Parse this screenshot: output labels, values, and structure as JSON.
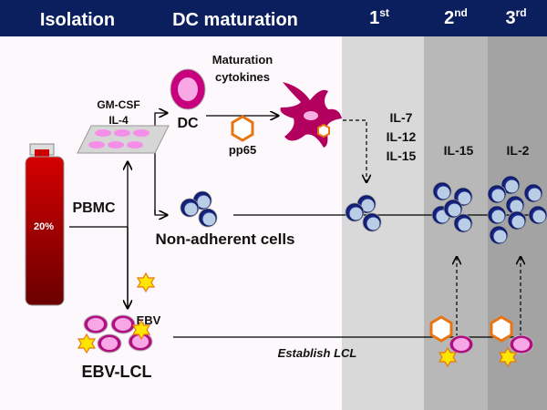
{
  "header": {
    "isolation": "Isolation",
    "dc_maturation": "DC maturation",
    "stim1": {
      "num": "1",
      "sup": "st"
    },
    "stim2": {
      "num": "2",
      "sup": "nd"
    },
    "stim3": {
      "num": "3",
      "sup": "rd"
    }
  },
  "labels": {
    "gm_csf": "GM-CSF",
    "il4": "IL-4",
    "dc": "DC",
    "maturation": "Maturation",
    "cytokines": "cytokines",
    "pp65": "pp65",
    "pbmc": "PBMC",
    "bottle_pct": "20%",
    "non_adherent": "Non-adherent cells",
    "ebv": "EBV",
    "ebv_lcl": "EBV-LCL",
    "establish_lcl": "Establish LCL",
    "stim1_cytokines": [
      "IL-7",
      "IL-12",
      "IL-15"
    ],
    "stim2_cytokine": "IL-15",
    "stim3_cytokine": "IL-2"
  },
  "colors": {
    "header": "#0b1f5e",
    "background": "#fdf8fb",
    "band1": "#d9d9d9",
    "band2": "#b8b8b8",
    "band3": "#a3a3a3",
    "dc_magenta": "#c8007e",
    "t_cell": "#1a2a8c",
    "antigen": "#e87511",
    "ebv_star": "#ffe600"
  }
}
